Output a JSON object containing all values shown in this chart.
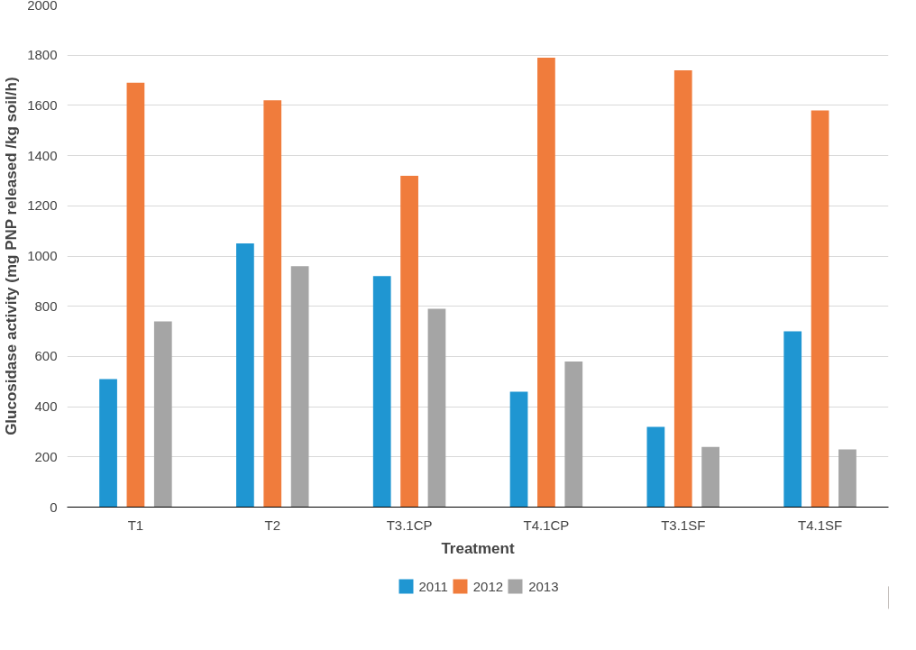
{
  "chart_data": {
    "type": "bar",
    "xlabel": "Treatment",
    "ylabel": "Glucosidase activity (mg PNP released /kg soil/h)",
    "categories": [
      "T1",
      "T2",
      "T3.1CP",
      "T4.1CP",
      "T3.1SF",
      "T4.1SF"
    ],
    "series": [
      {
        "name": "2011",
        "color": "#1f96d2",
        "values": [
          510,
          1050,
          920,
          460,
          320,
          700
        ]
      },
      {
        "name": "2012",
        "color": "#f07c3c",
        "values": [
          1690,
          1620,
          1320,
          1790,
          1740,
          1580
        ]
      },
      {
        "name": "2013",
        "color": "#a5a5a5",
        "values": [
          740,
          960,
          790,
          580,
          240,
          230
        ]
      }
    ],
    "ylim": [
      0,
      2000
    ],
    "yticks": [
      0,
      200,
      400,
      600,
      800,
      1000,
      1200,
      1400,
      1600,
      1800,
      2000
    ],
    "grid": "y",
    "legend": "bottom"
  }
}
